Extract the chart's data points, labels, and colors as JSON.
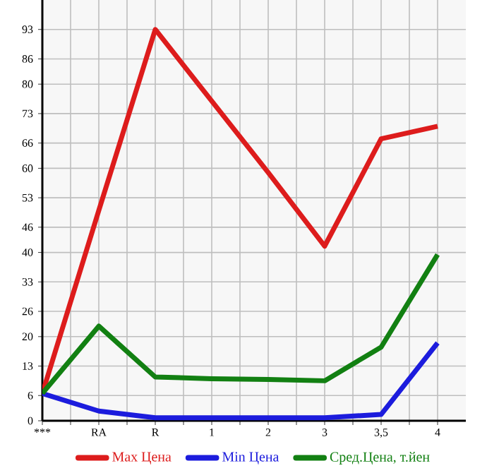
{
  "chart_data": {
    "type": "line",
    "categories": [
      "***",
      "RA",
      "R",
      "1",
      "2",
      "3",
      "3,5",
      "4"
    ],
    "series": [
      {
        "name": "Max Цена",
        "color": "#dd1c1c",
        "values": [
          6.5,
          50,
          93,
          76,
          59,
          41.5,
          67,
          70
        ]
      },
      {
        "name": "Min Цена",
        "color": "#1c1cdd",
        "values": [
          6.5,
          2.3,
          0.7,
          0.7,
          0.7,
          0.7,
          1.5,
          18.5
        ]
      },
      {
        "name": "Сред.Цена, т.йен",
        "color": "#128012",
        "values": [
          6.5,
          22.5,
          10.4,
          10,
          9.8,
          9.5,
          17.5,
          39.5
        ]
      }
    ],
    "ylim": [
      0,
      100
    ],
    "yticks": [
      0,
      6,
      13,
      20,
      26,
      33,
      40,
      46,
      53,
      60,
      66,
      73,
      80,
      86,
      93
    ],
    "grid": true,
    "legend": "bottom",
    "marker": "none",
    "line_style": "solid"
  }
}
